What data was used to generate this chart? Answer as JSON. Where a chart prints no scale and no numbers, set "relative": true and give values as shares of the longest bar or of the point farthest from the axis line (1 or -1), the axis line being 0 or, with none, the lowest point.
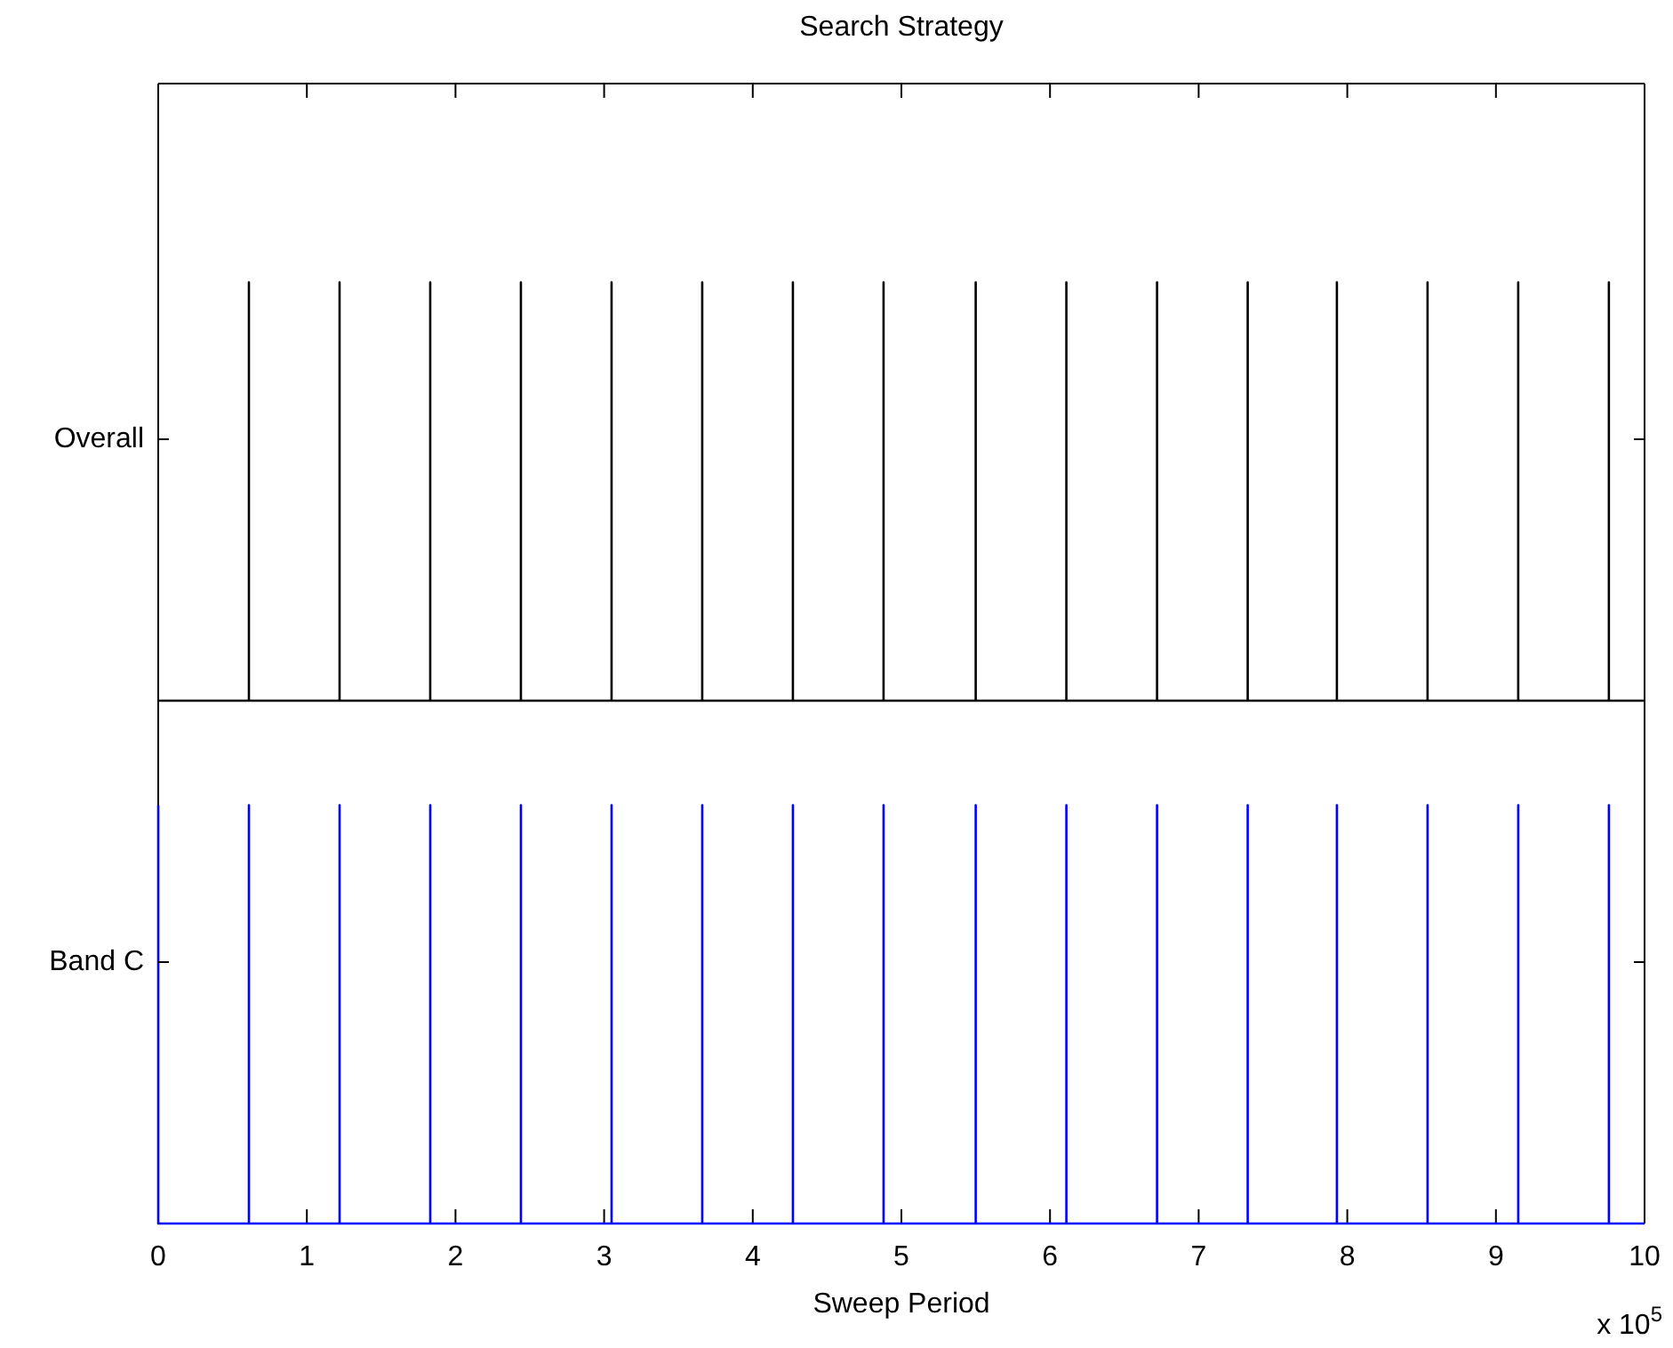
{
  "chart_data": [
    {
      "type": "line",
      "title": "Search Strategy",
      "ylabel": "Overall",
      "relative": true,
      "xlim": [
        0,
        10
      ],
      "xticks": [
        0,
        1,
        2,
        3,
        4,
        5,
        6,
        7,
        8,
        9,
        10
      ],
      "tick_labels": false,
      "series": [
        {
          "color": "#000000",
          "x": [
            0,
            0.61,
            0.61,
            0.61,
            1.22,
            1.22,
            1.22,
            1.83,
            1.83,
            1.83,
            2.44,
            2.44,
            2.44,
            3.05,
            3.05,
            3.05,
            3.66,
            3.66,
            3.66,
            4.27,
            4.27,
            4.27,
            4.88,
            4.88,
            4.88,
            5.5,
            5.5,
            5.5,
            6.11,
            6.11,
            6.11,
            6.72,
            6.72,
            6.72,
            7.33,
            7.33,
            7.33,
            7.93,
            7.93,
            7.93,
            8.54,
            8.54,
            8.54,
            9.15,
            9.15,
            9.15,
            9.76,
            9.76,
            9.76,
            10
          ],
          "values": [
            0,
            0,
            1,
            0,
            0,
            1,
            0,
            0,
            1,
            0,
            0,
            1,
            0,
            0,
            1,
            0,
            0,
            1,
            0,
            0,
            1,
            0,
            0,
            1,
            0,
            0,
            1,
            0,
            0,
            1,
            0,
            0,
            1,
            0,
            0,
            1,
            0,
            0,
            1,
            0,
            0,
            1,
            0,
            0,
            1,
            0,
            0,
            1,
            0,
            0
          ]
        }
      ]
    },
    {
      "type": "line",
      "xlabel": "Sweep Period",
      "ylabel": "Band C",
      "annotations": [
        "x 10$^{5}$"
      ],
      "relative": true,
      "xlim": [
        0,
        10
      ],
      "xticks": [
        0,
        1,
        2,
        3,
        4,
        5,
        6,
        7,
        8,
        9,
        10
      ],
      "tick_labels": "x",
      "series": [
        {
          "color": "#0000ff",
          "x": [
            0,
            0,
            0.61,
            0.61,
            0.61,
            1.22,
            1.22,
            1.22,
            1.83,
            1.83,
            1.83,
            2.44,
            2.44,
            2.44,
            3.05,
            3.05,
            3.05,
            3.66,
            3.66,
            3.66,
            4.27,
            4.27,
            4.27,
            4.88,
            4.88,
            4.88,
            5.5,
            5.5,
            5.5,
            6.11,
            6.11,
            6.11,
            6.72,
            6.72,
            6.72,
            7.33,
            7.33,
            7.33,
            7.93,
            7.93,
            7.93,
            8.54,
            8.54,
            8.54,
            9.15,
            9.15,
            9.15,
            9.76,
            9.76,
            9.76,
            10
          ],
          "values": [
            1,
            0,
            0,
            1,
            0,
            0,
            1,
            0,
            0,
            1,
            0,
            0,
            1,
            0,
            0,
            1,
            0,
            0,
            1,
            0,
            0,
            1,
            0,
            0,
            1,
            0,
            0,
            1,
            0,
            0,
            1,
            0,
            0,
            1,
            0,
            0,
            1,
            0,
            0,
            1,
            0,
            0,
            1,
            0,
            0,
            1,
            0,
            0,
            1,
            0,
            0
          ]
        }
      ]
    }
  ]
}
